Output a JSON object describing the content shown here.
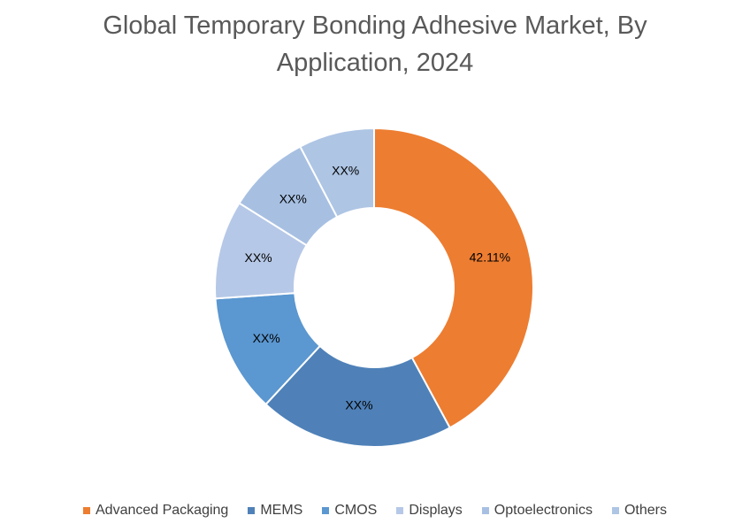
{
  "chart_data": {
    "type": "donut",
    "title": "Global Temporary Bonding Adhesive Market, By Application, 2024",
    "categories": [
      "Advanced Packaging",
      "MEMS",
      "CMOS",
      "Displays",
      "Optoelectronics",
      "Others"
    ],
    "values": [
      42.11,
      19.8,
      12,
      10,
      8.4,
      7.69
    ],
    "value_labels": [
      "42.11%",
      "XX%",
      "XX%",
      "XX%",
      "XX%",
      "XX%"
    ],
    "colors": [
      "#ed7d31",
      "#4f81b8",
      "#5b97d0",
      "#b6c8e7",
      "#a7c0e2",
      "#aec5e4"
    ],
    "legend": "bottom"
  }
}
